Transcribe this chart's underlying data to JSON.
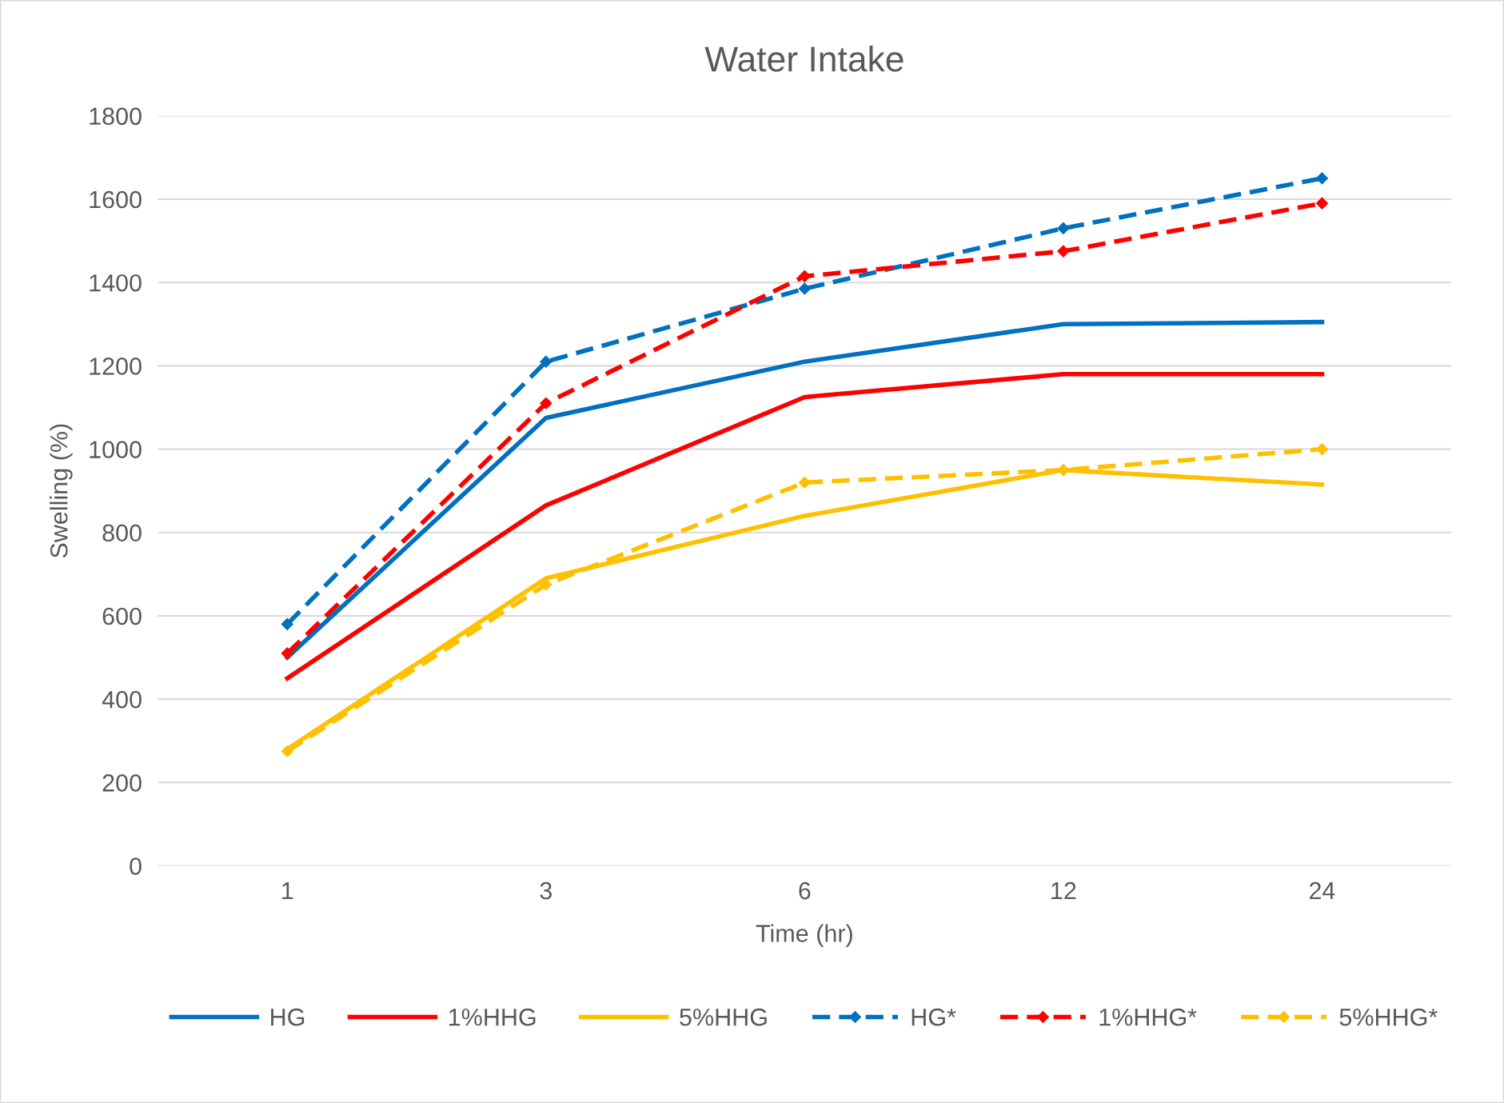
{
  "chart_data": {
    "type": "line",
    "title": "Water Intake",
    "xlabel": "Time (hr)",
    "ylabel": "Swelling (%)",
    "categories": [
      "1",
      "3",
      "6",
      "12",
      "24"
    ],
    "series": [
      {
        "name": "HG",
        "color": "#0070c0",
        "line_style": "solid",
        "marker": "none",
        "values": [
          500,
          1075,
          1210,
          1300,
          1305
        ]
      },
      {
        "name": "1%HHG",
        "color": "#ff0000",
        "line_style": "solid",
        "marker": "none",
        "values": [
          450,
          865,
          1125,
          1180,
          1180
        ]
      },
      {
        "name": "5%HHG",
        "color": "#ffc000",
        "line_style": "solid",
        "marker": "none",
        "values": [
          280,
          690,
          840,
          950,
          915
        ]
      },
      {
        "name": "HG*",
        "color": "#0070c0",
        "line_style": "dashed",
        "marker": "diamond",
        "values": [
          580,
          1210,
          1385,
          1530,
          1650
        ]
      },
      {
        "name": "1%HHG*",
        "color": "#ff0000",
        "line_style": "dashed",
        "marker": "diamond",
        "values": [
          510,
          1110,
          1415,
          1475,
          1590
        ]
      },
      {
        "name": "5%HHG*",
        "color": "#ffc000",
        "line_style": "dashed",
        "marker": "diamond",
        "values": [
          275,
          675,
          920,
          950,
          1000
        ]
      }
    ],
    "ylim": [
      0,
      1800
    ],
    "yticks": [
      0,
      200,
      400,
      600,
      800,
      1000,
      1200,
      1400,
      1600,
      1800
    ],
    "grid": "y",
    "legend": "bottom"
  }
}
